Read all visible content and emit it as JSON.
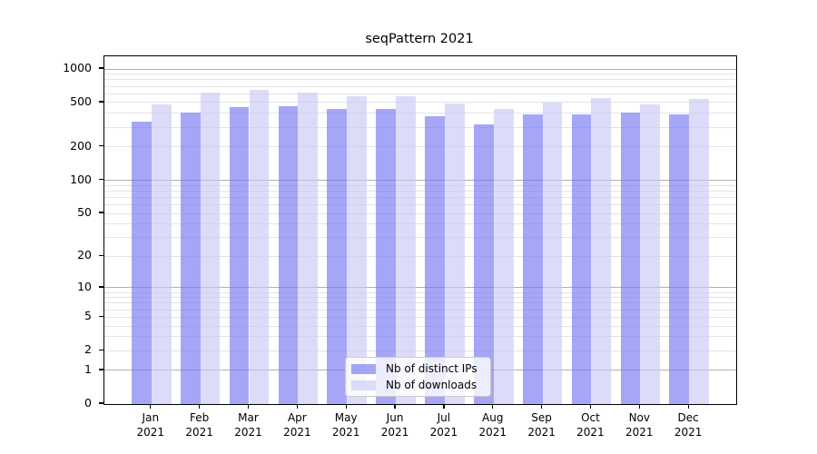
{
  "title": "seqPattern 2021",
  "chart_data": {
    "type": "bar",
    "title": "seqPattern 2021",
    "categories": [
      "Jan 2021",
      "Feb 2021",
      "Mar 2021",
      "Apr 2021",
      "May 2021",
      "Jun 2021",
      "Jul 2021",
      "Aug 2021",
      "Sep 2021",
      "Oct 2021",
      "Nov 2021",
      "Dec 2021"
    ],
    "series": [
      {
        "name": "Nb of distinct IPs",
        "color": "#7676f3",
        "alpha": 0.65,
        "values": [
          340,
          405,
          455,
          465,
          440,
          440,
          375,
          320,
          390,
          395,
          405,
          395
        ]
      },
      {
        "name": "Nb of downloads",
        "color": "#c9c9f6",
        "alpha": 0.65,
        "values": [
          480,
          615,
          645,
          615,
          570,
          575,
          490,
          435,
          500,
          545,
          480,
          535
        ]
      }
    ],
    "xlabel": "",
    "ylabel": "",
    "yscale": "log1p",
    "ylim": [
      0,
      1300
    ],
    "yticks": [
      0,
      1,
      2,
      5,
      10,
      20,
      50,
      100,
      200,
      500,
      1000
    ],
    "grid": {
      "major_ticks": [
        1,
        10,
        100,
        1000
      ],
      "minor_ticks": [
        2,
        3,
        4,
        5,
        6,
        7,
        8,
        9,
        20,
        30,
        40,
        50,
        60,
        70,
        80,
        90,
        200,
        300,
        400,
        500,
        600,
        700,
        800,
        900
      ],
      "major_color": "#b0b0b0",
      "minor_color": "#e4e4e8"
    },
    "legend": {
      "position": "lower center"
    }
  },
  "axes": {
    "spine_color": "#000000",
    "tick_color": "#000000",
    "text_color": "#000000"
  }
}
